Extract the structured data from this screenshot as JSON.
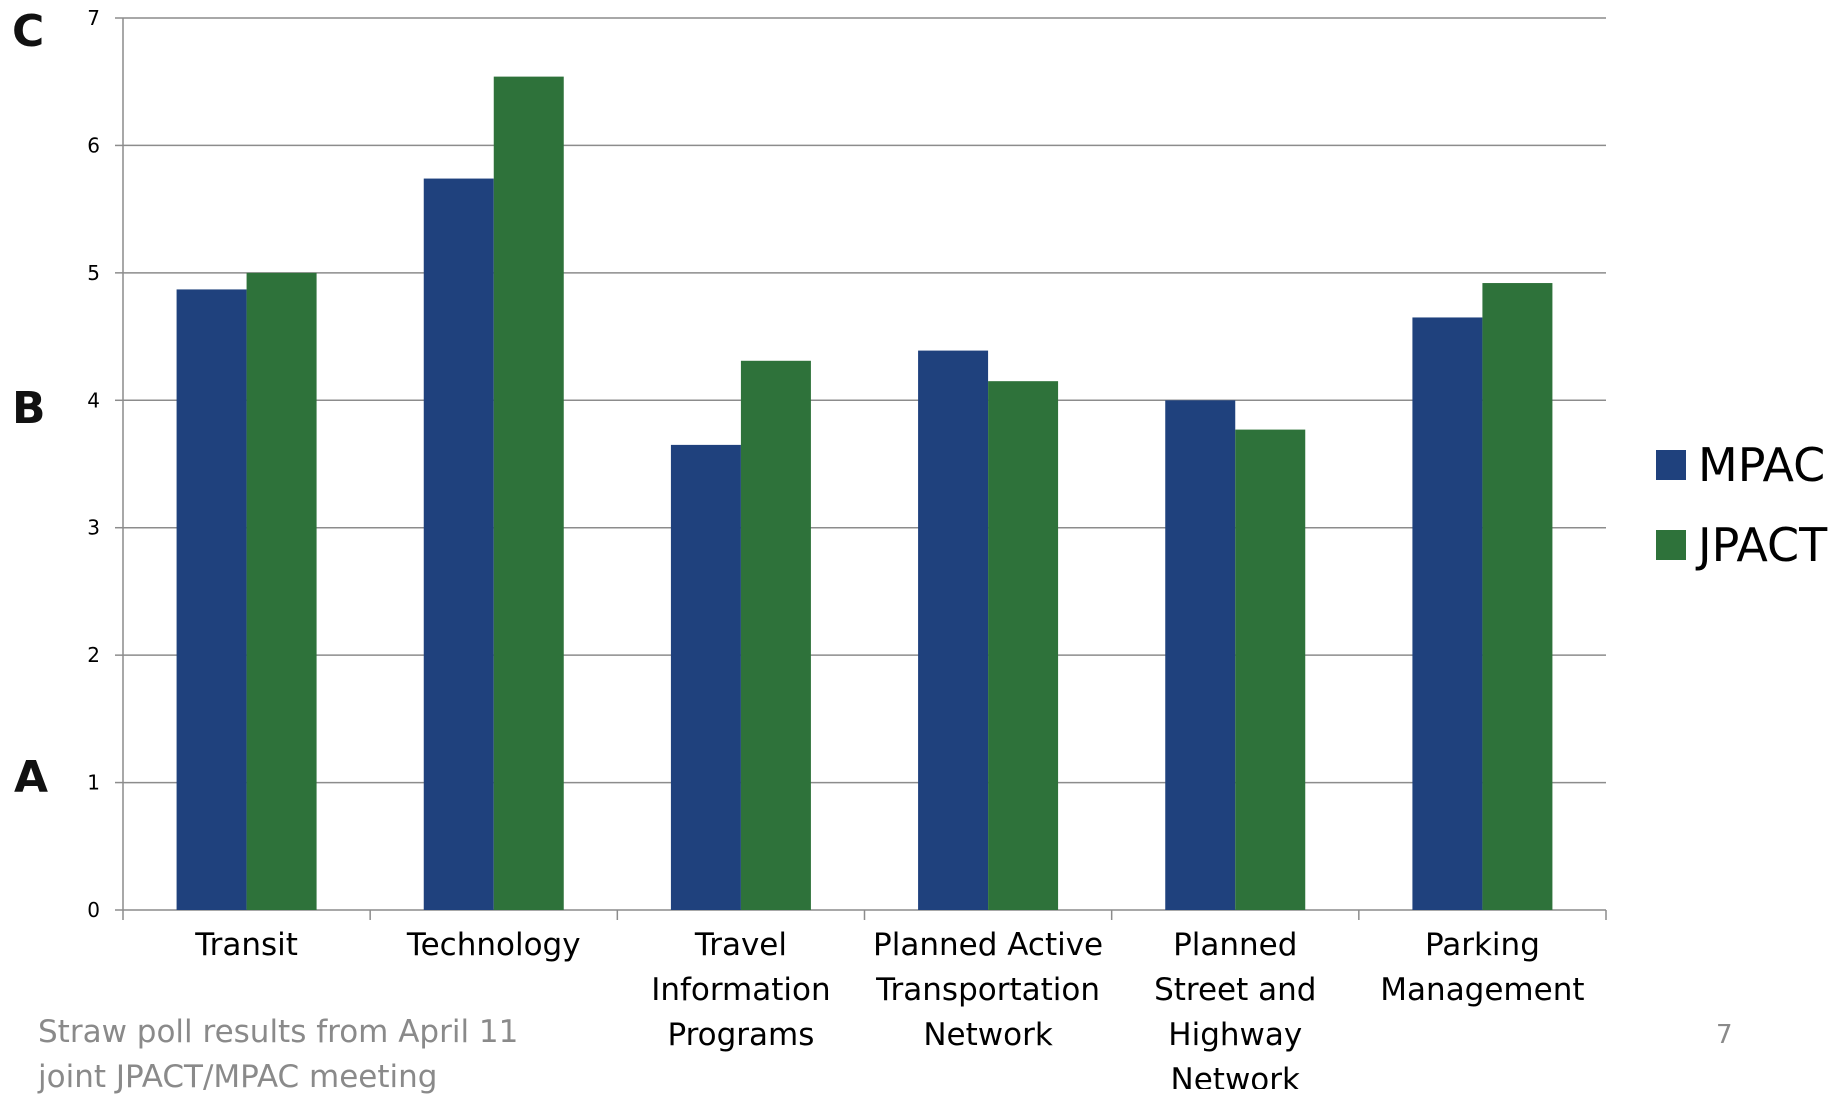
{
  "chart_data": {
    "type": "bar",
    "categories": [
      [
        "Transit"
      ],
      [
        "Technology"
      ],
      [
        "Travel",
        "Information",
        "Programs"
      ],
      [
        "Planned Active",
        "Transportation",
        "Network"
      ],
      [
        "Planned",
        "Street and",
        "Highway",
        "Network"
      ],
      [
        "Parking",
        "Management"
      ]
    ],
    "series": [
      {
        "name": "MPAC",
        "color": "#1f417d",
        "values": [
          4.87,
          5.74,
          3.65,
          4.39,
          4.0,
          4.65
        ]
      },
      {
        "name": "JPACT",
        "color": "#2e723a",
        "values": [
          5.0,
          6.54,
          4.31,
          4.15,
          3.77,
          4.92
        ]
      }
    ],
    "ylim": [
      0,
      7
    ],
    "yticks": [
      0,
      1,
      2,
      3,
      4,
      5,
      6,
      7
    ],
    "grid": true,
    "legend_position": "right",
    "title": "",
    "xlabel": "",
    "ylabel": ""
  },
  "grades": {
    "a": "A",
    "b": "B",
    "c": "C"
  },
  "legend": {
    "mpac": "MPAC",
    "jpact": "JPACT"
  },
  "footnote": {
    "line1": "Straw poll results from April 11",
    "line2": "joint JPACT/MPAC meeting"
  },
  "page_number": "7"
}
